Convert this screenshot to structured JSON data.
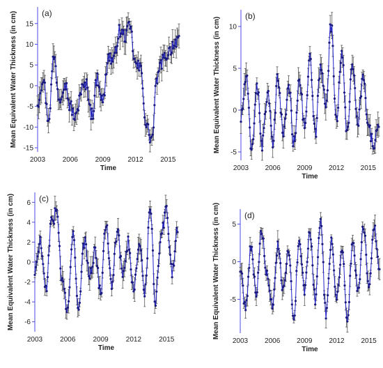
{
  "colors": {
    "series": "#2222cc",
    "errorbar": "#555555",
    "axis": "#4a4ae0",
    "text": "#222222"
  },
  "chart_data": [
    {
      "type": "line",
      "panel_label": "(a)",
      "xlabel": "Time",
      "ylabel": "Mean Equivalent Water Thickness (in cm)",
      "xlim": [
        2003,
        2016
      ],
      "ylim": [
        -16,
        19
      ],
      "xticks": [
        "2003",
        "2006",
        "2009",
        "2012",
        "2015"
      ],
      "yticks": [
        -15,
        -10,
        -5,
        0,
        5,
        10,
        15
      ],
      "error_bars": true,
      "series": [
        {
          "x": [
            2003.0,
            2003.5,
            2004.0,
            2004.5,
            2005.0,
            2005.5,
            2006.0,
            2006.5,
            2007.0,
            2007.5,
            2008.0,
            2008.5,
            2009.0,
            2009.5,
            2010.0,
            2010.5,
            2011.0,
            2011.5,
            2012.0,
            2012.5,
            2013.0,
            2013.5,
            2014.0,
            2014.5,
            2015.0,
            2015.5,
            2016.0
          ],
          "y": [
            -4,
            2,
            -8,
            7,
            -3,
            1,
            -5,
            -8,
            -1,
            0,
            -7,
            2,
            -4,
            7,
            6,
            13,
            12,
            14,
            5,
            4,
            -10,
            -13,
            2,
            6,
            8,
            10,
            12
          ]
        }
      ]
    },
    {
      "type": "line",
      "panel_label": "(b)",
      "xlabel": "Time",
      "ylabel": "Mean Equivalent Water Thickness (in cm)",
      "xlim": [
        2003,
        2016
      ],
      "ylim": [
        -6,
        12
      ],
      "xticks": [
        "2003",
        "2006",
        "2009",
        "2012",
        "2015"
      ],
      "yticks": [
        -5,
        0,
        5,
        10
      ],
      "error_bars": true,
      "series": [
        {
          "x": [
            2003.0,
            2003.5,
            2004.0,
            2004.5,
            2005.0,
            2005.5,
            2006.0,
            2006.5,
            2007.0,
            2007.5,
            2008.0,
            2008.5,
            2009.0,
            2009.5,
            2010.0,
            2010.5,
            2011.0,
            2011.5,
            2012.0,
            2012.5,
            2013.0,
            2013.5,
            2014.0,
            2014.5,
            2015.0,
            2015.5,
            2016.0
          ],
          "y": [
            -1,
            4,
            -5,
            3,
            -4,
            2,
            -4,
            4,
            -3,
            3,
            -4,
            4,
            -2,
            6,
            -3,
            5,
            1,
            10,
            -1,
            7,
            -3,
            6,
            -2,
            4,
            -2,
            -4,
            -2
          ]
        }
      ]
    },
    {
      "type": "line",
      "panel_label": "(c)",
      "xlabel": "Time",
      "ylabel": "Mean Equivalent Water Thickness (in cm)",
      "xlim": [
        2003,
        2016
      ],
      "ylim": [
        -7,
        7
      ],
      "xticks": [
        "2003",
        "2006",
        "2009",
        "2012",
        "2015"
      ],
      "yticks": [
        -6,
        -4,
        -2,
        0,
        2,
        4,
        6
      ],
      "error_bars": true,
      "series": [
        {
          "x": [
            2003.0,
            2003.5,
            2004.0,
            2004.5,
            2005.0,
            2005.5,
            2006.0,
            2006.5,
            2007.0,
            2007.5,
            2008.0,
            2008.5,
            2009.0,
            2009.5,
            2010.0,
            2010.5,
            2011.0,
            2011.5,
            2012.0,
            2012.5,
            2013.0,
            2013.5,
            2014.0,
            2014.5,
            2015.0,
            2015.5,
            2016.0
          ],
          "y": [
            -1,
            2,
            -3,
            4,
            5,
            -2,
            -5,
            3,
            -5,
            2,
            -1,
            1,
            -3,
            4,
            -2,
            3,
            -1,
            2,
            -3,
            2,
            -3,
            5,
            -4,
            3,
            5,
            -1,
            3
          ]
        }
      ]
    },
    {
      "type": "line",
      "panel_label": "(d)",
      "xlabel": "Time",
      "ylabel": "Mean Equivalent Water Thickness (in cm)",
      "xlim": [
        2003,
        2016
      ],
      "ylim": [
        -9.5,
        7
      ],
      "xticks": [
        "2003",
        "2006",
        "2009",
        "2012",
        "2015"
      ],
      "yticks": [
        -5,
        0,
        5
      ],
      "error_bars": true,
      "series": [
        {
          "x": [
            2003.0,
            2003.5,
            2004.0,
            2004.5,
            2005.0,
            2005.5,
            2006.0,
            2006.5,
            2007.0,
            2007.5,
            2008.0,
            2008.5,
            2009.0,
            2009.5,
            2010.0,
            2010.5,
            2011.0,
            2011.5,
            2012.0,
            2012.5,
            2013.0,
            2013.5,
            2014.0,
            2014.5,
            2015.0,
            2015.5,
            2016.0
          ],
          "y": [
            -1,
            -6,
            2,
            -4,
            4,
            -2,
            -6,
            2,
            -4,
            1,
            -7,
            3,
            -4,
            4,
            -5,
            6,
            -7,
            3,
            -5,
            2,
            -8,
            3,
            -4,
            5,
            -3,
            5,
            -1
          ]
        }
      ]
    }
  ]
}
